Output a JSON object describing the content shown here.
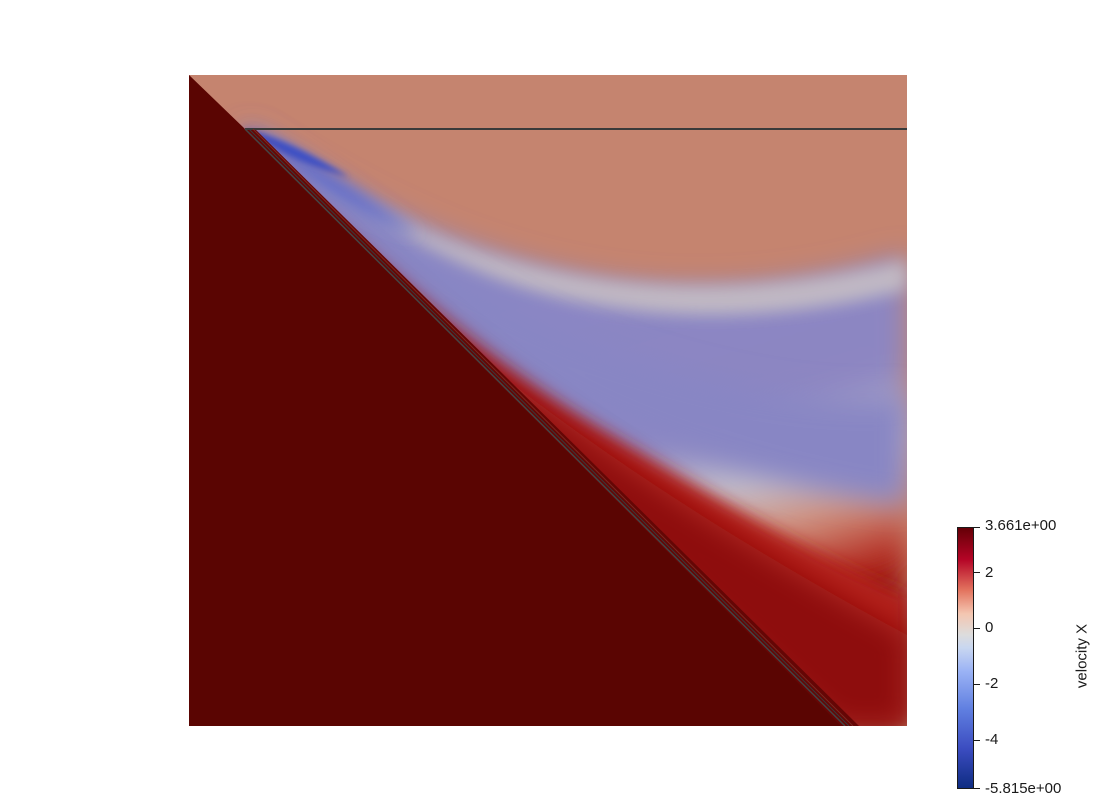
{
  "colorbar": {
    "title": "velocity X",
    "max_label": "3.661e+00",
    "min_label": "-5.815e+00",
    "ticks": [
      "2",
      "0",
      "-2",
      "-4"
    ],
    "range": [
      -5.815,
      3.661
    ],
    "colormap": "coolwarm"
  },
  "colors": {
    "high": "#5a0502",
    "free_stream": "#c5846f",
    "low": "#6e75c9",
    "background": "#ffffff",
    "wall_line": "#3a3a3a"
  }
}
